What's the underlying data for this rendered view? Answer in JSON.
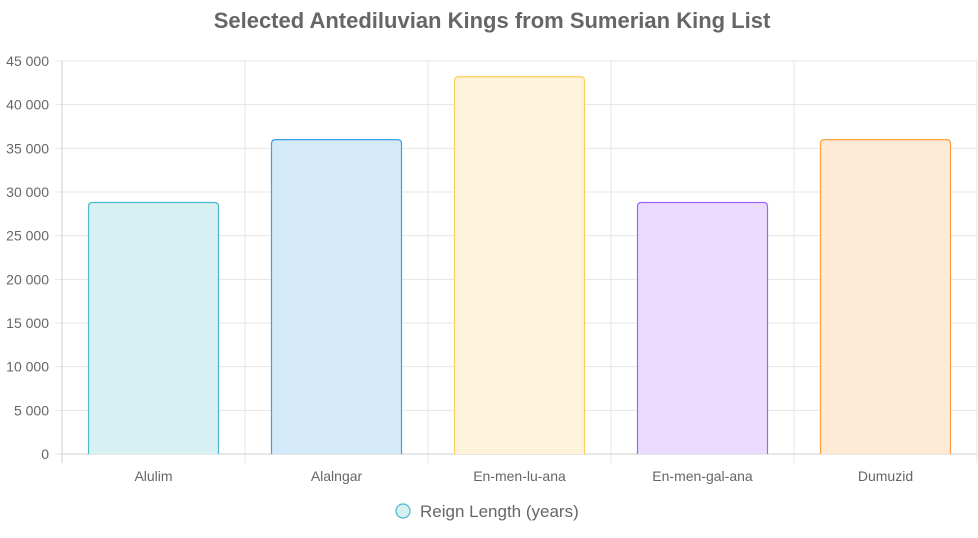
{
  "chart_data": {
    "type": "bar",
    "title": "Selected Antediluvian Kings from Sumerian King List",
    "categories": [
      "Alulim",
      "Alalngar",
      "En-men-lu-ana",
      "En-men-gal-ana",
      "Dumuzid"
    ],
    "series": [
      {
        "name": "Reign Length (years)",
        "values": [
          28800,
          36000,
          43200,
          28800,
          36000
        ]
      }
    ],
    "ylim": [
      0,
      45000
    ],
    "yticks": [
      0,
      5000,
      10000,
      15000,
      20000,
      25000,
      30000,
      35000,
      40000,
      45000
    ],
    "ytick_labels": [
      "0",
      "5 000",
      "10 000",
      "15 000",
      "20 000",
      "25 000",
      "30 000",
      "35 000",
      "40 000",
      "45 000"
    ],
    "grid": true,
    "legend_position": "bottom",
    "colors": {
      "borders": [
        "#4bb8cc",
        "#36a2eb",
        "#ffce56",
        "#9966ff",
        "#ff9f40"
      ],
      "fills": [
        "#d7f0f1",
        "#d5eaf9",
        "#fff3dc",
        "#ebdcff",
        "#ffead6"
      ],
      "legend_border": "#4bb8cc",
      "legend_fill": "#d7f0f1"
    }
  }
}
